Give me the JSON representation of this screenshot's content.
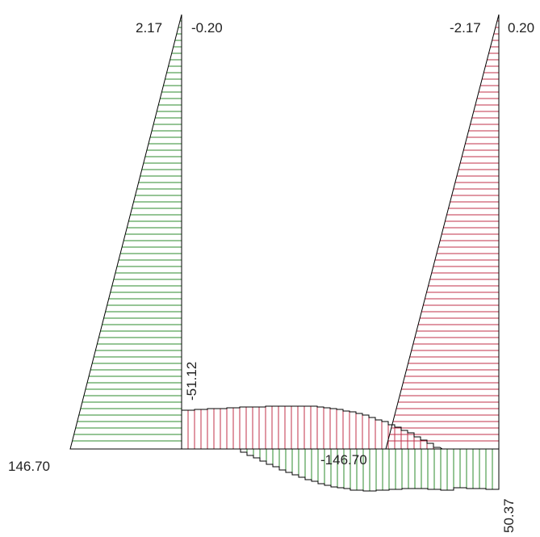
{
  "colors": {
    "positive_fill_lines": "#2e8b2e",
    "negative_fill_lines": "#c0304a",
    "outline": "#000000",
    "background": "#ffffff"
  },
  "labels": {
    "left_top_value": "2.17",
    "left_top_value2": "-0.20",
    "right_top_value": "-2.17",
    "right_top_value2": "0.20",
    "left_base_value": "146.70",
    "beam_mid_value": "-51.12",
    "beam_center_value": "-146.70",
    "beam_end_value": "50.37"
  }
}
